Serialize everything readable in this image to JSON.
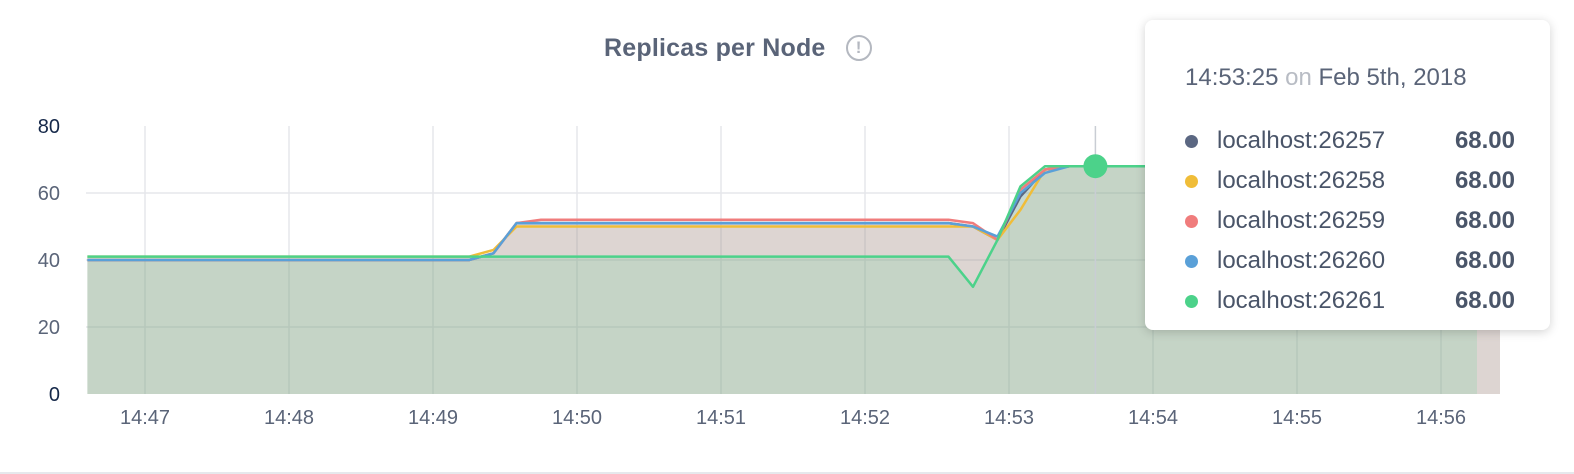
{
  "header": {
    "title": "Replicas per Node",
    "info_icon": "exclamation-circle-icon"
  },
  "chart_data": {
    "type": "area",
    "title": "Replicas per Node",
    "xlabel": "",
    "ylabel": "",
    "ylim": [
      0,
      80
    ],
    "yticks": [
      "0",
      "20",
      "40",
      "60",
      "80"
    ],
    "xticks": [
      {
        "label": "14:47",
        "t": 14.783
      },
      {
        "label": "14:48",
        "t": 14.8
      },
      {
        "label": "14:49",
        "t": 14.817
      },
      {
        "label": "14:50",
        "t": 14.833
      },
      {
        "label": "14:51",
        "t": 14.85
      },
      {
        "label": "14:52",
        "t": 14.867
      },
      {
        "label": "14:53",
        "t": 14.883
      },
      {
        "label": "14:54",
        "t": 14.9
      },
      {
        "label": "14:55",
        "t": 14.917
      },
      {
        "label": "14:56",
        "t": 14.933
      }
    ],
    "x_minutes": [
      46.6,
      49.25,
      49.42,
      49.58,
      49.75,
      52.58,
      52.75,
      52.92,
      53.08,
      53.25,
      53.42,
      56.25
    ],
    "series": [
      {
        "name": "localhost:26257",
        "color": "#5b6782",
        "values": [
          40,
          40,
          42,
          51,
          51,
          51,
          50,
          46,
          59,
          67,
          68,
          68
        ]
      },
      {
        "name": "localhost:26258",
        "color": "#f0bd38",
        "values": [
          41,
          41,
          43,
          50,
          50,
          50,
          50,
          46,
          55,
          67,
          68,
          68
        ]
      },
      {
        "name": "localhost:26259",
        "color": "#f07c7c",
        "values": [
          40,
          40,
          42,
          51,
          52,
          52,
          51,
          46,
          61,
          67,
          68,
          68
        ]
      },
      {
        "name": "localhost:26260",
        "color": "#5aa0d8",
        "values": [
          40,
          40,
          42,
          51,
          51,
          51,
          50,
          47,
          60,
          66,
          68,
          68
        ]
      },
      {
        "name": "localhost:26261",
        "color": "#4cd28a",
        "values": [
          41,
          41,
          41,
          41,
          41,
          41,
          32,
          46,
          62,
          68,
          68,
          68
        ]
      }
    ],
    "hover_x_minutes": 53.6,
    "hover_value": 68
  },
  "tooltip": {
    "time": "14:53:25",
    "on": "on",
    "date": "Feb 5th, 2018",
    "rows": [
      {
        "name": "localhost:26257",
        "value": "68.00",
        "color": "#5b6782"
      },
      {
        "name": "localhost:26258",
        "value": "68.00",
        "color": "#f0bd38"
      },
      {
        "name": "localhost:26259",
        "value": "68.00",
        "color": "#f07c7c"
      },
      {
        "name": "localhost:26260",
        "value": "68.00",
        "color": "#5aa0d8"
      },
      {
        "name": "localhost:26261",
        "value": "68.00",
        "color": "#4cd28a"
      }
    ]
  }
}
